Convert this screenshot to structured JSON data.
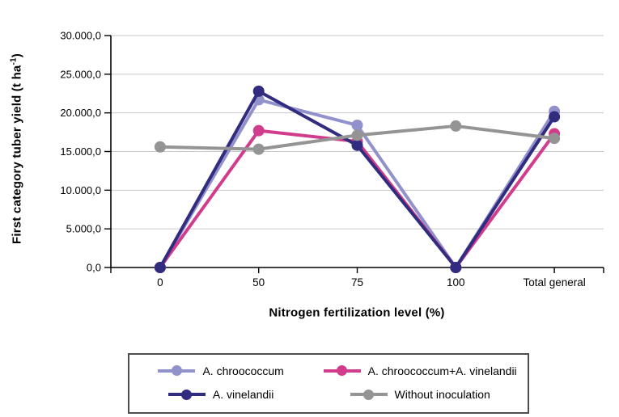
{
  "chart_data": {
    "type": "line",
    "title": "",
    "xlabel": "Nitrogen fertilization level (%)",
    "ylabel": "First category tuber yield (t ha⁻¹)",
    "ylabel_parts": {
      "pre": "First category tuber yield (t ha",
      "sup": "-1",
      "post": ")"
    },
    "x_categories": [
      "0",
      "50",
      "75",
      "100",
      "Total general"
    ],
    "series": [
      {
        "name": "A. chroococcum",
        "color": "#9191cb",
        "values": [
          0,
          21700,
          18400,
          0,
          20200
        ]
      },
      {
        "name": "A. chroococcum+A. vinelandii",
        "color": "#d13c8c",
        "values": [
          0,
          17700,
          16300,
          0,
          17300
        ]
      },
      {
        "name": "A. vinelandii",
        "color": "#312c80",
        "values": [
          0,
          22800,
          15800,
          0,
          19500
        ]
      },
      {
        "name": "Without inoculation",
        "color": "#949494",
        "values": [
          15600,
          15300,
          17100,
          18300,
          16700
        ]
      }
    ],
    "ylim": [
      0,
      30000
    ],
    "ytick_interval": 5000,
    "ytick_labels": [
      "0,0",
      "5.000,0",
      "10.000,0",
      "15.000,0",
      "20.000,0",
      "25.000,0",
      "30.000,0"
    ],
    "grid": true,
    "legend_position": "bottom",
    "colors": {
      "axis": "#000000",
      "grid": "#c8c8c8",
      "text": "#000000",
      "legend_border": "#4d4d4d"
    }
  }
}
